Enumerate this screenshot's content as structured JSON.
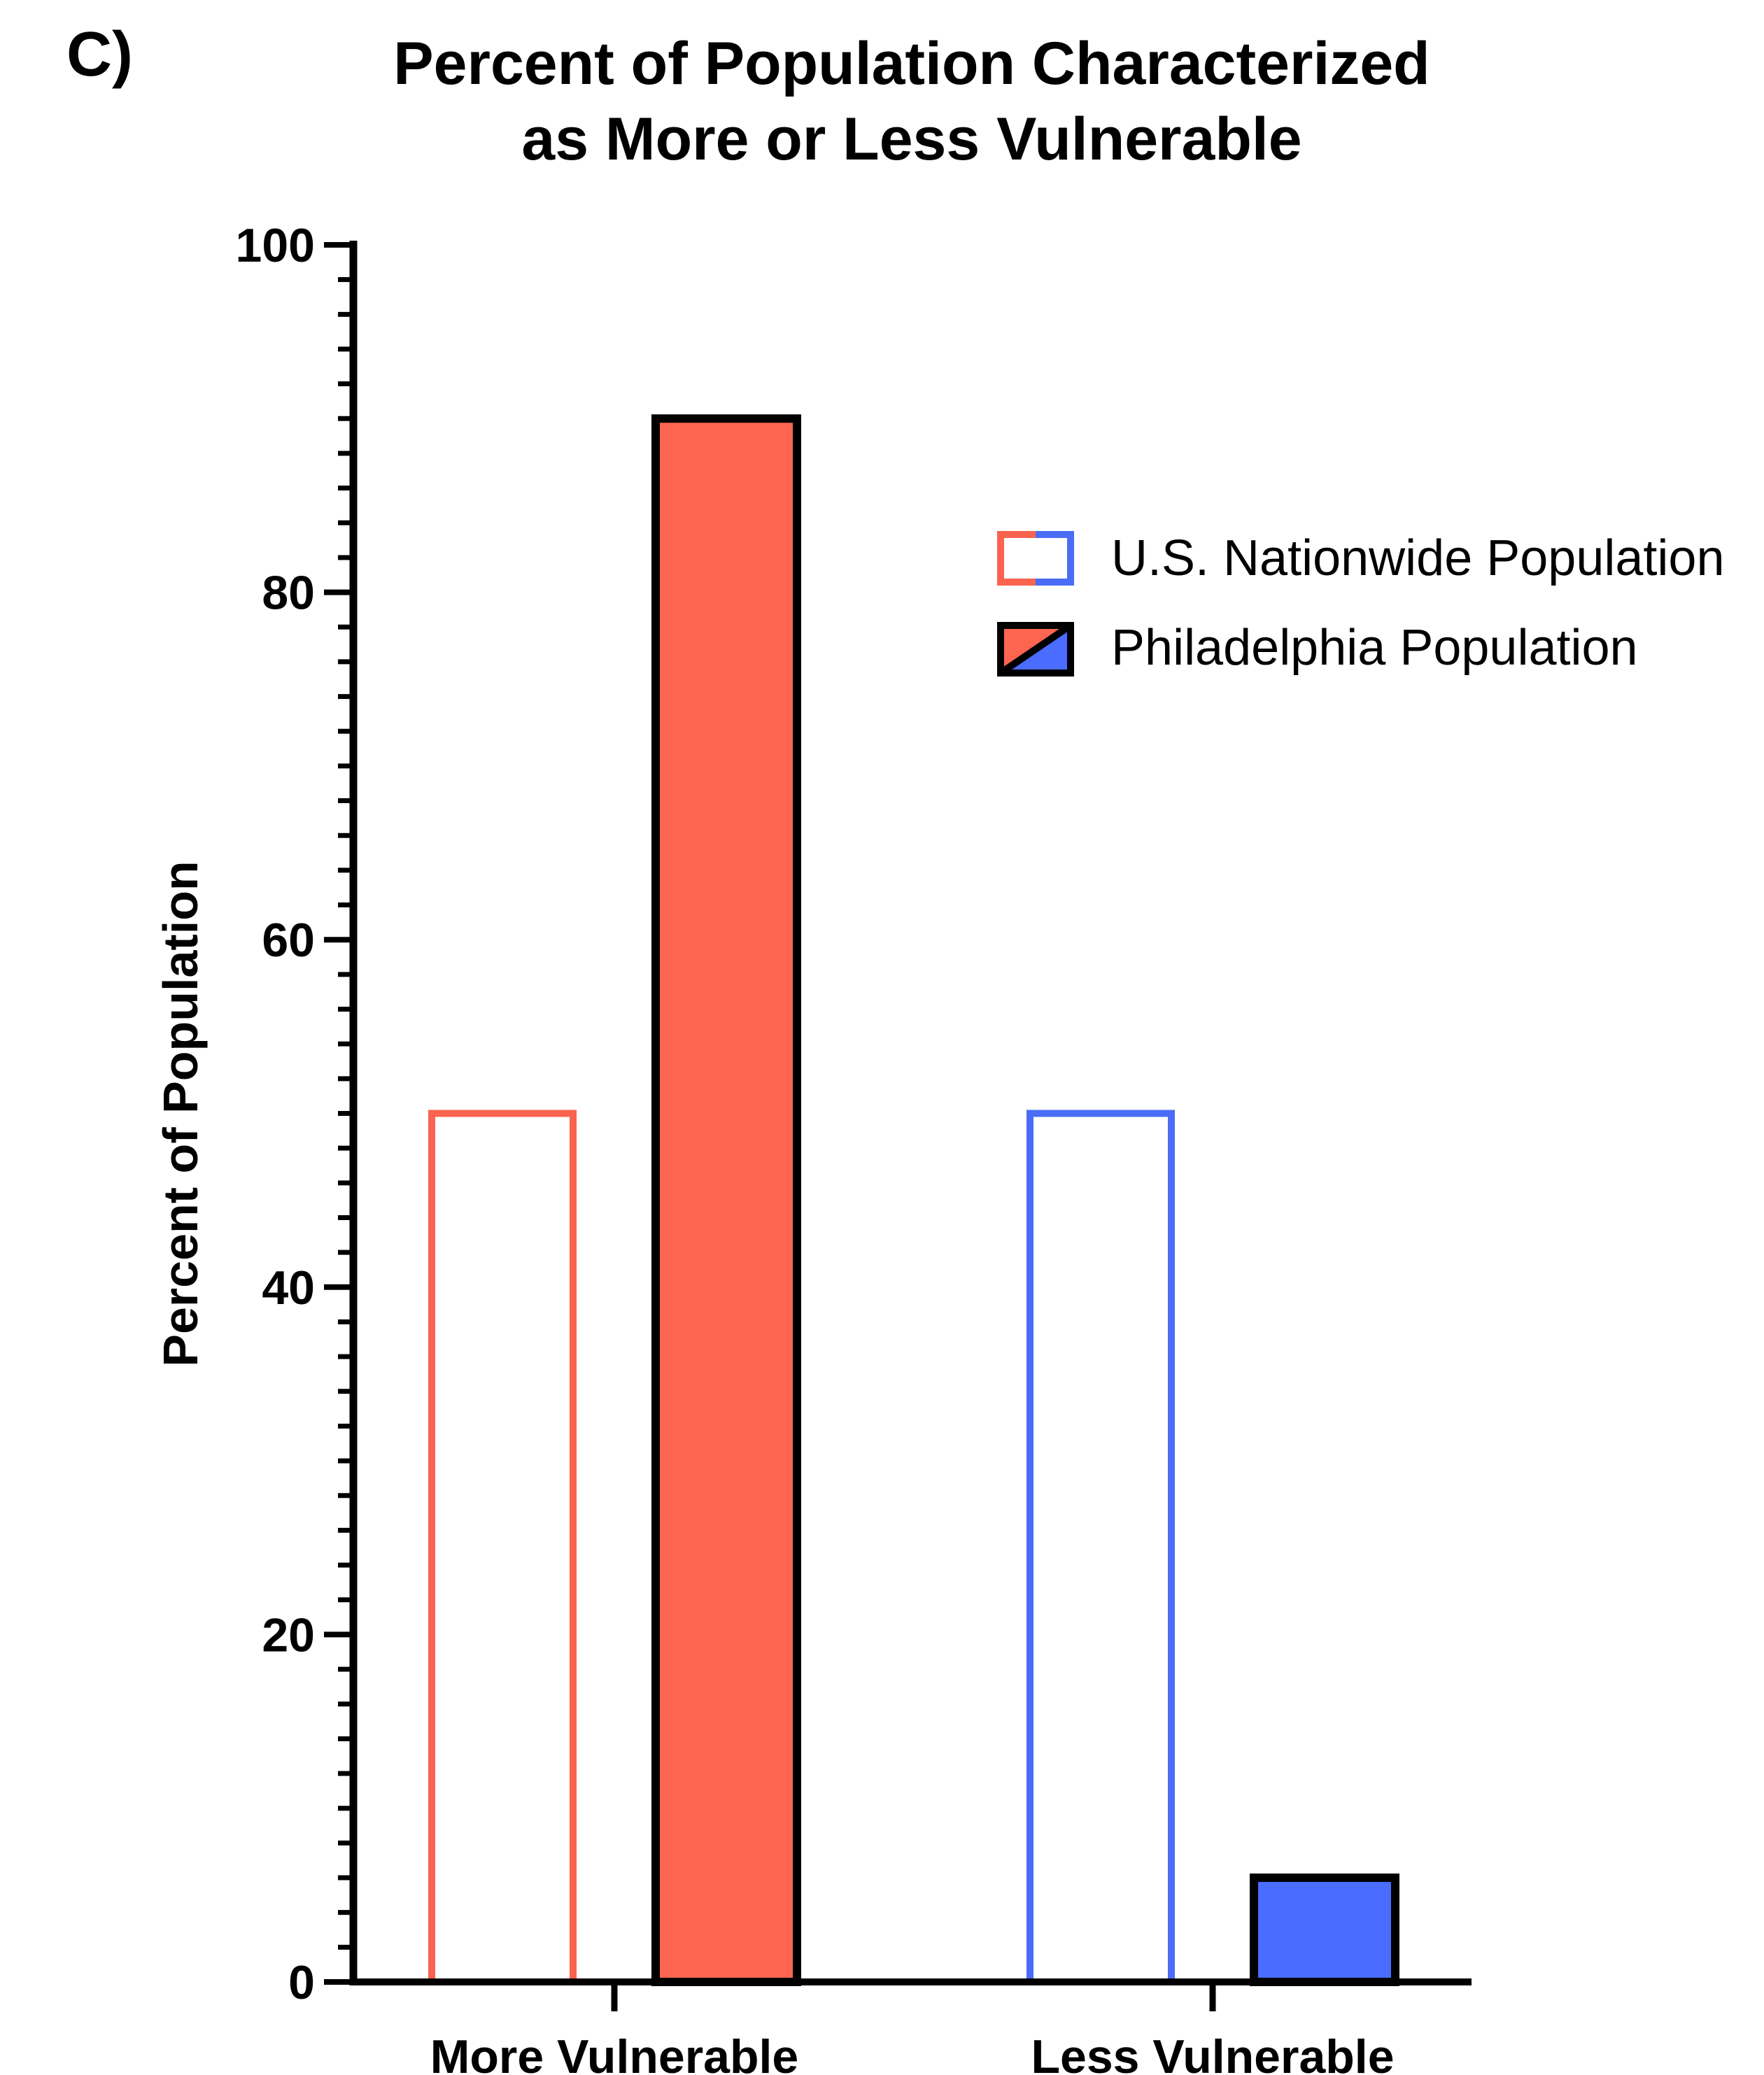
{
  "panel_label": "C)",
  "chart_data": {
    "type": "bar",
    "title_lines": [
      "Percent of Population Characterized",
      "as More or Less Vulnerable"
    ],
    "xlabel": "",
    "ylabel": "Percent of Population",
    "ylim": [
      0,
      100
    ],
    "yticks": [
      0,
      20,
      40,
      60,
      80,
      100
    ],
    "y_minor_step": 2,
    "categories": [
      "More Vulnerable",
      "Less Vulnerable"
    ],
    "series": [
      {
        "name": "U.S. Nationwide Population",
        "values": [
          50,
          50
        ],
        "style": "outline",
        "colors": [
          "#f9634f",
          "#4a6cf7"
        ]
      },
      {
        "name": "Philadelphia Population",
        "values": [
          90,
          6
        ],
        "style": "filled",
        "colors": [
          "#fd6550",
          "#4a6cff"
        ]
      }
    ],
    "legend_position": "top-right",
    "grid": false
  }
}
